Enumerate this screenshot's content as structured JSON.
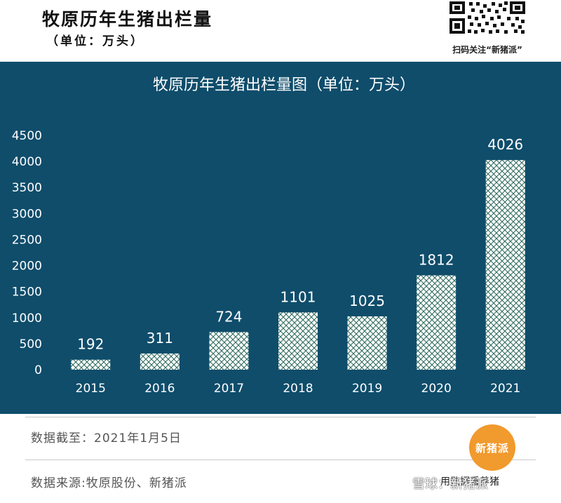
{
  "header": {
    "title": "牧原历年生猪出栏量",
    "subtitle": "（单位：万头）",
    "qr_caption": "扫码关注“新猪派”"
  },
  "chart_data": {
    "type": "bar",
    "title": "牧原历年生猪出栏量图（单位：万头）",
    "categories": [
      "2015",
      "2016",
      "2017",
      "2018",
      "2019",
      "2020",
      "2021"
    ],
    "values": [
      192,
      311,
      724,
      1101,
      1025,
      1812,
      4026
    ],
    "data_labels": [
      "192",
      "311",
      "724",
      "1101",
      "1025",
      "1812",
      "4026"
    ],
    "y_ticks": [
      "0",
      "500",
      "1000",
      "1500",
      "2000",
      "2500",
      "3000",
      "3500",
      "4000",
      "4500"
    ],
    "ylim": [
      0,
      4500
    ],
    "xlabel": "",
    "ylabel": "",
    "grid": false
  },
  "footer": {
    "cutoff": "数据截至：2021年1月5日",
    "source": "数据来源:牧原股份、新猪派",
    "badge": "新猪派",
    "slogan": "用数据看养猪",
    "watermark": "雪球：新猪派"
  },
  "colors": {
    "panel": "#0f4d6b",
    "bar_fill": "#ffffff",
    "bar_hatch": "#2f6b5e",
    "badge": "#f19a2d"
  }
}
